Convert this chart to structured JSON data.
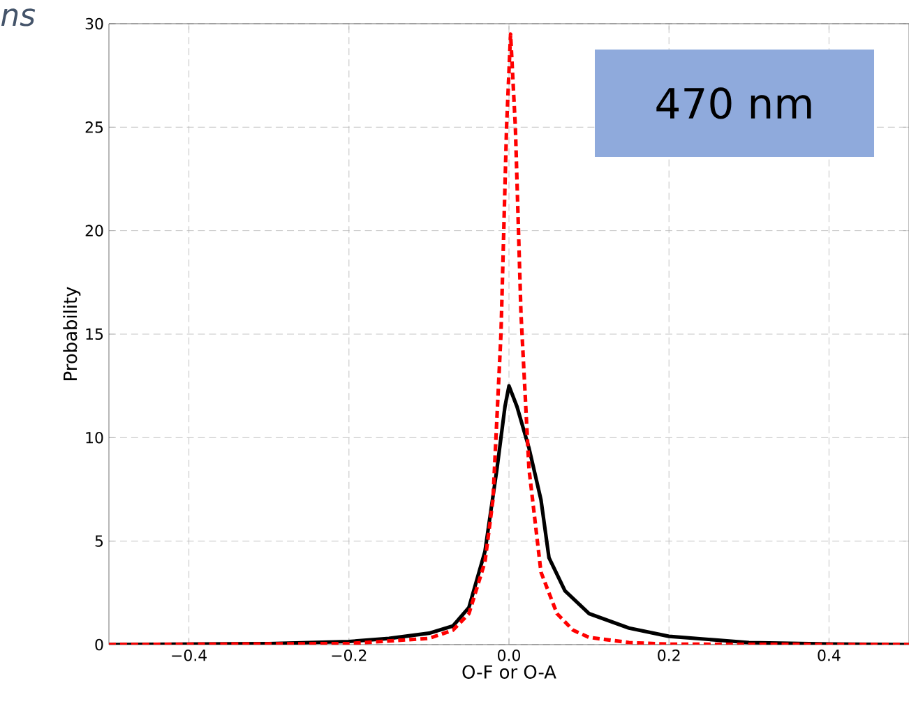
{
  "chart_data": {
    "type": "line",
    "xlabel": "O-F or O-A",
    "ylabel": "Probability",
    "annotations": [
      "ns",
      "470 nm"
    ],
    "xlim": [
      -0.5,
      0.5
    ],
    "ylim": [
      0,
      30
    ],
    "xticks": [
      {
        "value": -0.4,
        "label": "−0.4"
      },
      {
        "value": -0.2,
        "label": "−0.2"
      },
      {
        "value": 0.0,
        "label": "0.0"
      },
      {
        "value": 0.2,
        "label": "0.2"
      },
      {
        "value": 0.4,
        "label": "0.4"
      }
    ],
    "yticks": [
      0,
      5,
      10,
      15,
      20,
      25,
      30
    ],
    "grid": true,
    "series": [
      {
        "color": "#000000",
        "line_style": "solid",
        "x": [
          -0.5,
          -0.3,
          -0.2,
          -0.15,
          -0.1,
          -0.07,
          -0.05,
          -0.03,
          -0.015,
          -0.005,
          0,
          0.01,
          0.025,
          0.04,
          0.05,
          0.07,
          0.1,
          0.15,
          0.2,
          0.3,
          0.4,
          0.5
        ],
        "values": [
          0,
          0.05,
          0.15,
          0.3,
          0.55,
          0.9,
          1.8,
          4.5,
          8.5,
          11.5,
          12.5,
          11.5,
          9.5,
          7,
          4.2,
          2.6,
          1.5,
          0.8,
          0.4,
          0.1,
          0.03,
          0
        ]
      },
      {
        "color": "#ff0000",
        "line_style": "dashed",
        "x": [
          -0.5,
          -0.2,
          -0.1,
          -0.07,
          -0.05,
          -0.03,
          -0.02,
          -0.01,
          -0.003,
          0.002,
          0.008,
          0.015,
          0.025,
          0.04,
          0.06,
          0.08,
          0.1,
          0.15,
          0.2,
          0.5
        ],
        "values": [
          0,
          0.05,
          0.3,
          0.7,
          1.5,
          4,
          7,
          15,
          25,
          29.5,
          25,
          16,
          8.5,
          3.5,
          1.5,
          0.7,
          0.35,
          0.1,
          0.02,
          0
        ]
      }
    ]
  }
}
